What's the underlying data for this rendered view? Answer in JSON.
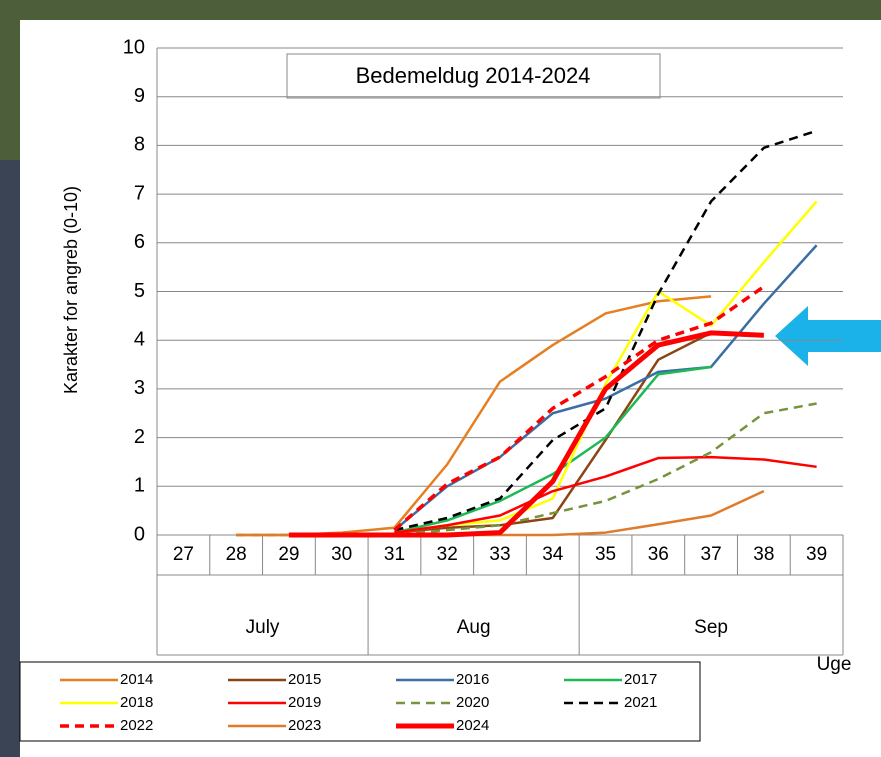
{
  "chart_data": {
    "type": "line",
    "title": "Bedemeldug 2014-2024",
    "y_label": "Karakter for angreb (0-10)",
    "x_label": "Uge",
    "categories": [
      "27",
      "28",
      "29",
      "30",
      "31",
      "32",
      "33",
      "34",
      "35",
      "36",
      "37",
      "38",
      "39"
    ],
    "groups": [
      {
        "label": "July",
        "start": "27",
        "end": "30"
      },
      {
        "label": "Aug",
        "start": "31",
        "end": "34"
      },
      {
        "label": "Sep",
        "start": "35",
        "end": "39"
      }
    ],
    "ylim": [
      0,
      10
    ],
    "yticks": [
      0,
      1,
      2,
      3,
      4,
      5,
      6,
      7,
      8,
      9,
      10
    ],
    "grid": true,
    "series": [
      {
        "name": "2014",
        "color": "#e67e22",
        "width": 2.5,
        "dashed": false,
        "values": [
          null,
          0,
          0,
          0.05,
          0.15,
          1.45,
          3.15,
          3.9,
          4.55,
          4.8,
          4.9,
          null,
          null
        ]
      },
      {
        "name": "2015",
        "color": "#8b4513",
        "width": 2.5,
        "dashed": false,
        "values": [
          null,
          null,
          null,
          null,
          0.05,
          0.15,
          0.2,
          0.35,
          1.95,
          3.6,
          4.15,
          null,
          null
        ]
      },
      {
        "name": "2016",
        "color": "#3a6ea5",
        "width": 2.5,
        "dashed": false,
        "values": [
          null,
          null,
          null,
          null,
          0.1,
          1.0,
          1.6,
          2.5,
          2.8,
          3.35,
          3.45,
          4.75,
          5.95
        ]
      },
      {
        "name": "2017",
        "color": "#1db954",
        "width": 2.5,
        "dashed": false,
        "values": [
          null,
          null,
          null,
          null,
          0.05,
          0.3,
          0.7,
          1.25,
          2.0,
          3.3,
          3.45,
          null,
          null
        ]
      },
      {
        "name": "2018",
        "color": "#ffff00",
        "width": 2.5,
        "dashed": false,
        "values": [
          null,
          null,
          null,
          null,
          0.05,
          0.2,
          0.3,
          0.75,
          3.1,
          5.0,
          4.3,
          5.6,
          6.85
        ]
      },
      {
        "name": "2019",
        "color": "#ff0000",
        "width": 2.5,
        "dashed": false,
        "values": [
          null,
          null,
          null,
          null,
          0.05,
          0.2,
          0.4,
          0.9,
          1.2,
          1.58,
          1.6,
          1.55,
          1.4
        ]
      },
      {
        "name": "2020",
        "color": "#77933c",
        "width": 2.5,
        "dashed": true,
        "values": [
          null,
          0,
          0,
          0,
          0,
          0.1,
          0.2,
          0.45,
          0.7,
          1.15,
          1.7,
          2.5,
          2.7
        ]
      },
      {
        "name": "2021",
        "color": "#000000",
        "width": 2.5,
        "dashed": true,
        "values": [
          null,
          null,
          null,
          null,
          0.1,
          0.35,
          0.75,
          1.95,
          2.6,
          4.95,
          6.85,
          7.95,
          8.3
        ]
      },
      {
        "name": "2022",
        "color": "#ff0000",
        "width": 3.5,
        "dashed": true,
        "values": [
          null,
          null,
          null,
          null,
          0.1,
          1.05,
          1.6,
          2.6,
          3.25,
          4.0,
          4.35,
          5.1,
          null
        ]
      },
      {
        "name": "2023",
        "color": "#e07b2b",
        "width": 2.5,
        "dashed": false,
        "values": [
          null,
          0,
          0,
          0,
          0,
          0,
          0,
          0,
          0.05,
          0.22,
          0.4,
          0.9,
          null
        ]
      },
      {
        "name": "2024",
        "color": "#ff0000",
        "width": 5,
        "dashed": false,
        "values": [
          null,
          null,
          0,
          0,
          0,
          0,
          0.05,
          1.1,
          3.0,
          3.9,
          4.15,
          4.1,
          null
        ]
      }
    ]
  }
}
